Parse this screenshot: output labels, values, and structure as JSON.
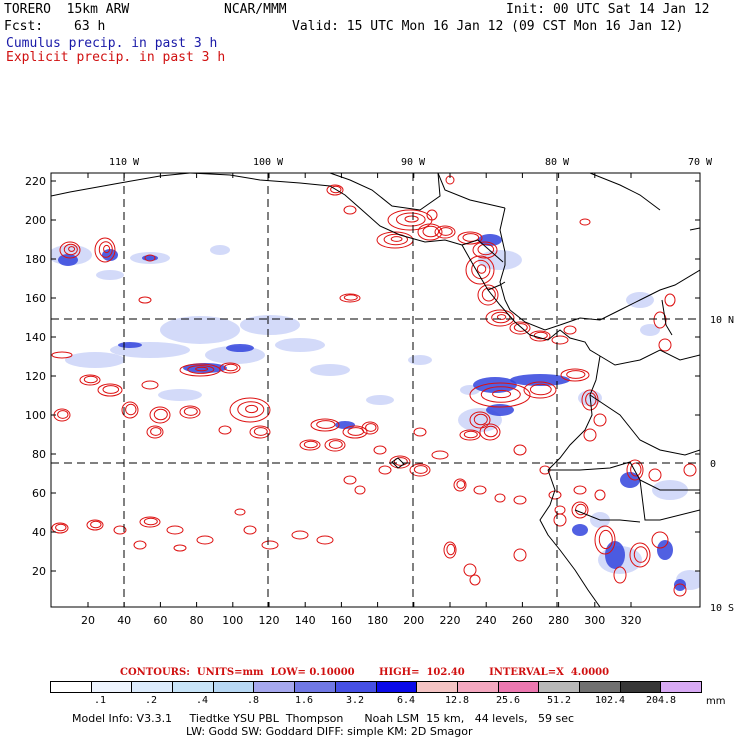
{
  "header": {
    "model": "TORERO  15km ARW",
    "org": "NCAR/MMM",
    "init": "Init: 00 UTC Sat 14 Jan 12",
    "fcst_label": "Fcst:",
    "fcst_value": "63 h",
    "valid": "Valid: 15 UTC Mon 16 Jan 12 (09 CST Mon 16 Jan 12)",
    "cumulus": "Cumulus precip. in past 3 h",
    "explicit": "Explicit precip. in past 3 h"
  },
  "map": {
    "top_lon_labels": [
      "110 W",
      "100 W",
      "90 W",
      "80 W",
      "70 W"
    ],
    "right_lat_labels": [
      "10 N",
      "0",
      "10 S"
    ],
    "y_ticks": [
      "220",
      "200",
      "180",
      "160",
      "140",
      "120",
      "100",
      "80",
      "60",
      "40",
      "20"
    ],
    "x_ticks": [
      "20",
      "40",
      "60",
      "80",
      "100",
      "120",
      "140",
      "160",
      "180",
      "200",
      "220",
      "240",
      "260",
      "280",
      "300",
      "320"
    ],
    "colors": {
      "cumulus": "#3344dd",
      "cumulus_light": "#aebcf4",
      "explicit": "#dd1111",
      "coast": "#000000",
      "grid": "#000000"
    }
  },
  "legend": {
    "contours": "CONTOURS:  UNITS=mm  LOW= 0.10000       HIGH=  102.40       INTERVAL=X  4.0000",
    "colors": [
      "#ffffff",
      "#eef4fe",
      "#dcebfc",
      "#c8e4f8",
      "#b8d8f4",
      "#a6a8ee",
      "#7078e4",
      "#4650e4",
      "#0a0ae8",
      "#f4c4c4",
      "#f4a8c0",
      "#ec78b0",
      "#b8b8b8",
      "#707070",
      "#383838",
      "#d8aaf4"
    ],
    "labels": [
      ".1",
      ".2",
      ".4",
      ".8",
      "1.6",
      "3.2",
      "6.4",
      "12.8",
      "25.6",
      "51.2",
      "102.4",
      "204.8"
    ],
    "unit": "mm"
  },
  "footer": {
    "line1": "Model Info: V3.3.1     Tiedtke YSU PBL  Thompson      Noah LSM  15 km,   44 levels,   59 sec",
    "line2": "LW: Godd SW: Goddard DIFF: simple KM: 2D Smagor"
  }
}
